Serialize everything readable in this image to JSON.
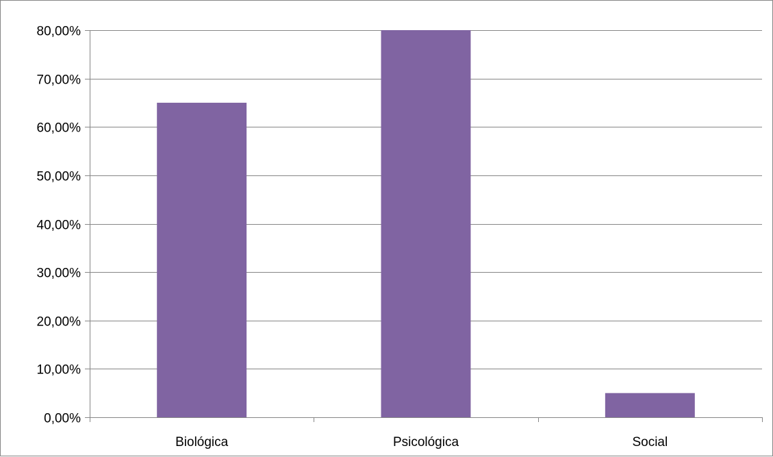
{
  "chart_data": {
    "type": "bar",
    "title": "",
    "xlabel": "",
    "ylabel": "",
    "categories": [
      "Biológica",
      "Psicológica",
      "Social"
    ],
    "series": [
      {
        "values": [
          65,
          80,
          5
        ]
      }
    ],
    "ylim": [
      0,
      80
    ],
    "yticks": [
      0,
      10,
      20,
      30,
      40,
      50,
      60,
      70,
      80
    ],
    "ytick_labels": [
      "0,00%",
      "10,00%",
      "20,00%",
      "30,00%",
      "40,00%",
      "50,00%",
      "60,00%",
      "70,00%",
      "80,00%"
    ],
    "grid": true,
    "legend": "none",
    "colors": {
      "bar": "#8064A2",
      "grid": "#868686",
      "axis": "#868686",
      "frame": "#868686"
    }
  }
}
